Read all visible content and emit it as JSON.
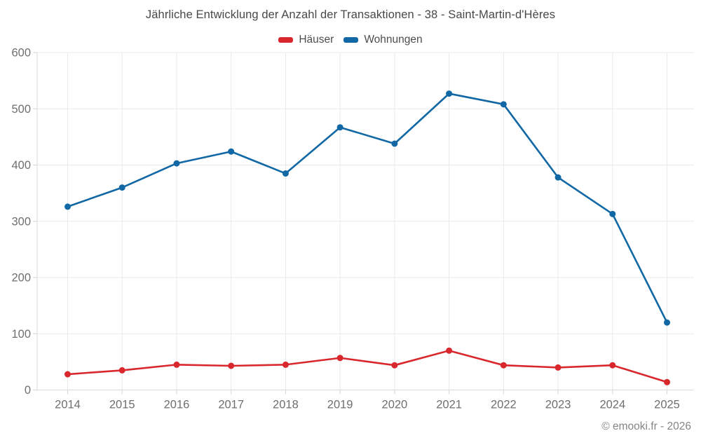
{
  "chart": {
    "title": "Jährliche Entwicklung der Anzahl der Transaktionen - 38 - Saint-Martin-d'Hères",
    "footer": "© emooki.fr - 2026"
  },
  "chart_data": {
    "type": "line",
    "title": "Jährliche Entwicklung der Anzahl der Transaktionen - 38 - Saint-Martin-d'Hères",
    "categories": [
      "2014",
      "2015",
      "2016",
      "2017",
      "2018",
      "2019",
      "2020",
      "2021",
      "2022",
      "2023",
      "2024",
      "2025"
    ],
    "series": [
      {
        "name": "Häuser",
        "color": "#d8282e",
        "values": [
          28,
          35,
          45,
          43,
          45,
          57,
          44,
          70,
          44,
          40,
          44,
          14
        ]
      },
      {
        "name": "Wohnungen",
        "color": "#1268a4",
        "values": [
          326,
          360,
          403,
          424,
          385,
          467,
          438,
          527,
          508,
          378,
          313,
          120
        ]
      }
    ],
    "xlabel": "",
    "ylabel": "",
    "ylim": [
      0,
      600
    ],
    "yticks": [
      0,
      100,
      200,
      300,
      400,
      500,
      600
    ],
    "grid": true,
    "legend_position": "top",
    "colors": {
      "grid": "#e9e9e9",
      "axis_border": "#dadada",
      "tick": "#d4d4d4",
      "tick_label": "#6f6f6f",
      "title": "#484848",
      "legend_text": "#4d4d4d",
      "footer": "#858585",
      "background": "#ffffff"
    }
  }
}
